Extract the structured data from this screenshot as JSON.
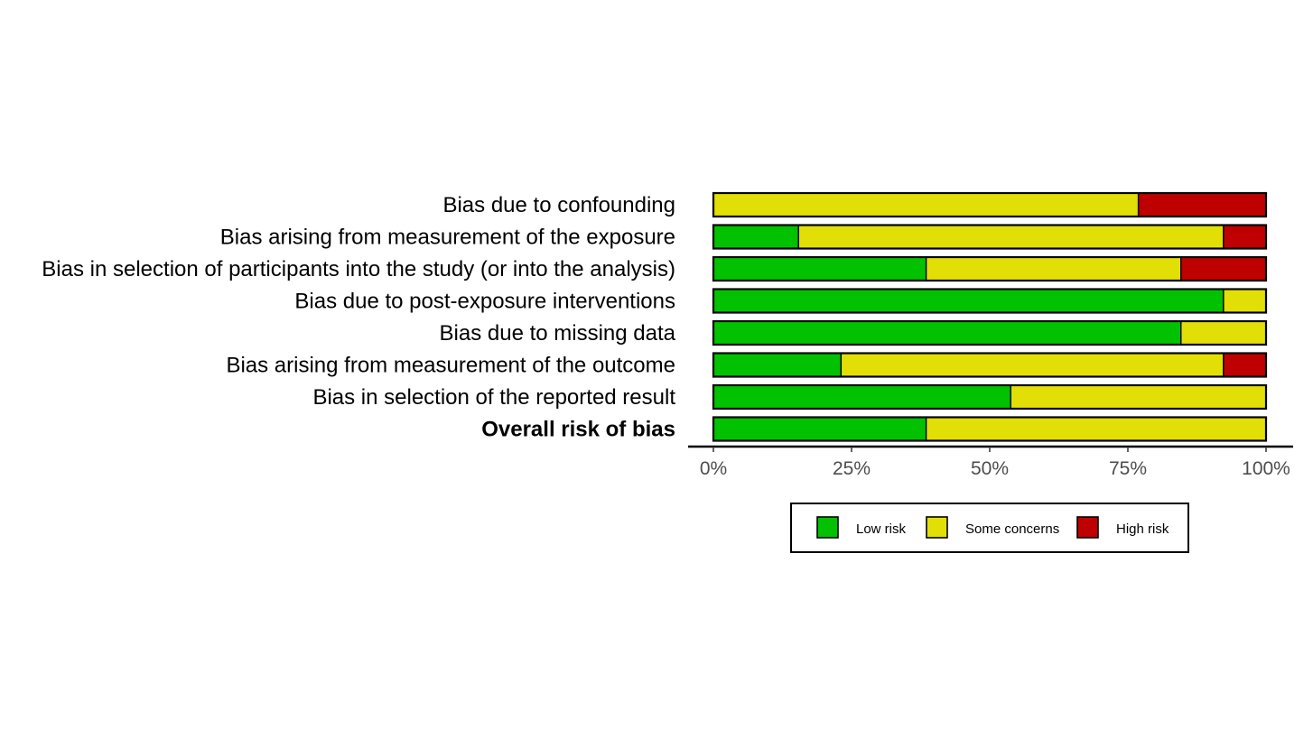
{
  "chart_data": {
    "type": "bar",
    "orientation": "horizontal",
    "stacked": true,
    "categories": [
      "Bias due to confounding",
      "Bias arising from measurement of the exposure",
      "Bias in selection of participants into the study (or into the analysis)",
      "Bias due to post-exposure interventions",
      "Bias due to missing data",
      "Bias arising from measurement of the outcome",
      "Bias in selection of the reported result",
      "Overall risk of bias"
    ],
    "bold_categories": [
      "Overall risk of bias"
    ],
    "series": [
      {
        "name": "Low risk",
        "color": "#02C100",
        "values": [
          0,
          15.4,
          38.5,
          92.3,
          84.6,
          23.1,
          53.8,
          38.5
        ]
      },
      {
        "name": "Some concerns",
        "color": "#E2DF07",
        "values": [
          76.9,
          76.9,
          46.1,
          7.7,
          15.4,
          69.2,
          46.2,
          61.5
        ]
      },
      {
        "name": "High risk",
        "color": "#BF0000",
        "values": [
          23.1,
          7.7,
          15.4,
          0,
          0,
          7.7,
          0,
          0
        ]
      }
    ],
    "x_ticks": [
      "0%",
      "25%",
      "50%",
      "75%",
      "100%"
    ],
    "xlim": [
      0,
      100
    ],
    "grid": false,
    "legend_position": "bottom",
    "title": "",
    "xlabel": "",
    "ylabel": ""
  }
}
